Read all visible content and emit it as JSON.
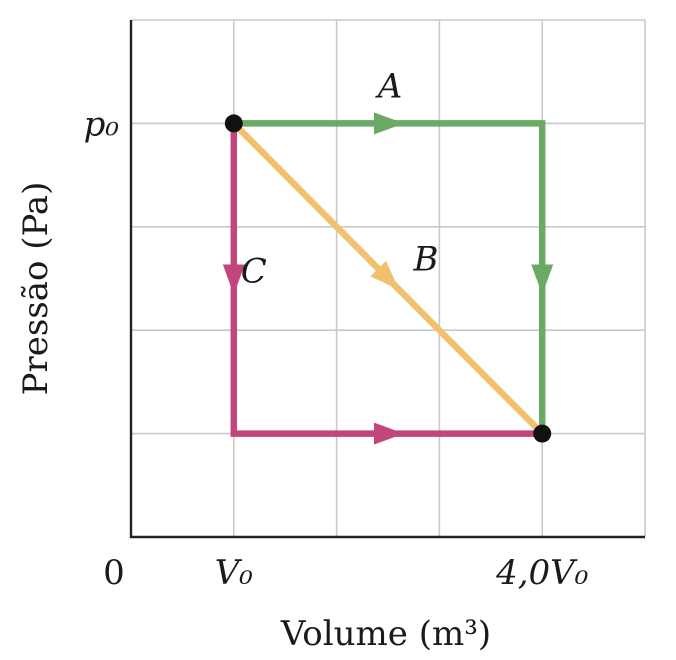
{
  "chart_data": {
    "type": "line",
    "xlabel": "Volume (m³)",
    "ylabel": "Pressão (Pa)",
    "origin_label": "0",
    "x_tick_labels": [
      {
        "x": 1,
        "label": "V₀"
      },
      {
        "x": 4,
        "label": "4,0V₀"
      }
    ],
    "y_tick_labels": [
      {
        "y": 4,
        "label": "p₀"
      }
    ],
    "xlim": [
      0,
      5
    ],
    "ylim": [
      0,
      5
    ],
    "grid": true,
    "series": [
      {
        "name": "A",
        "color": "#6aaa64",
        "points": [
          [
            1,
            4
          ],
          [
            4,
            4
          ],
          [
            4,
            1
          ]
        ]
      },
      {
        "name": "B",
        "color": "#f2c16e",
        "points": [
          [
            1,
            4
          ],
          [
            4,
            1
          ]
        ]
      },
      {
        "name": "C",
        "color": "#c2467c",
        "points": [
          [
            1,
            4
          ],
          [
            1,
            1
          ],
          [
            4,
            1
          ]
        ]
      }
    ],
    "endpoints": [
      [
        1,
        4
      ],
      [
        4,
        1
      ]
    ]
  }
}
